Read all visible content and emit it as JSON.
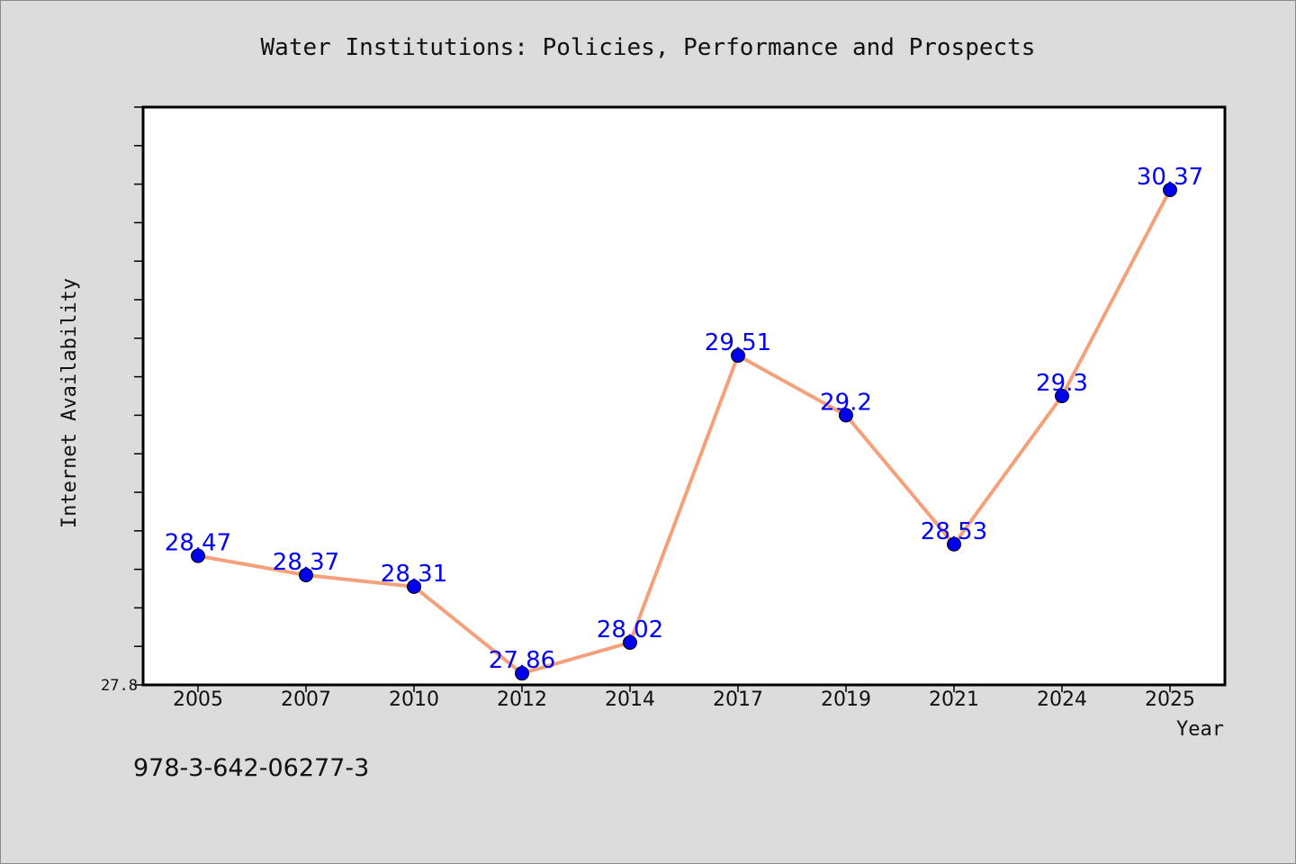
{
  "chart_data": {
    "type": "line",
    "title": "Water Institutions: Policies, Performance and Prospects",
    "xlabel": "Year",
    "ylabel": "Internet Availability",
    "categories": [
      "2005",
      "2007",
      "2010",
      "2012",
      "2014",
      "2017",
      "2019",
      "2021",
      "2024",
      "2025"
    ],
    "series": [
      {
        "values": [
          28.47,
          28.37,
          28.31,
          27.86,
          28.02,
          29.51,
          29.2,
          28.53,
          29.3,
          30.37
        ]
      }
    ],
    "data_labels": [
      "28.47",
      "28.37",
      "28.31",
      "27.86",
      "28.02",
      "29.51",
      "29.2",
      "28.53",
      "29.3",
      "30.37"
    ],
    "y_tick_labels": [
      "27.8"
    ],
    "ylim": [
      27.8,
      30.8
    ],
    "y_minor_tick_step": 0.2,
    "grid": false,
    "legend": "none",
    "line_color": "#f4a07a",
    "marker_color": "#0000ee",
    "label_color": "#0000ff"
  },
  "footer": {
    "isbn": "978-3-642-06277-3"
  }
}
